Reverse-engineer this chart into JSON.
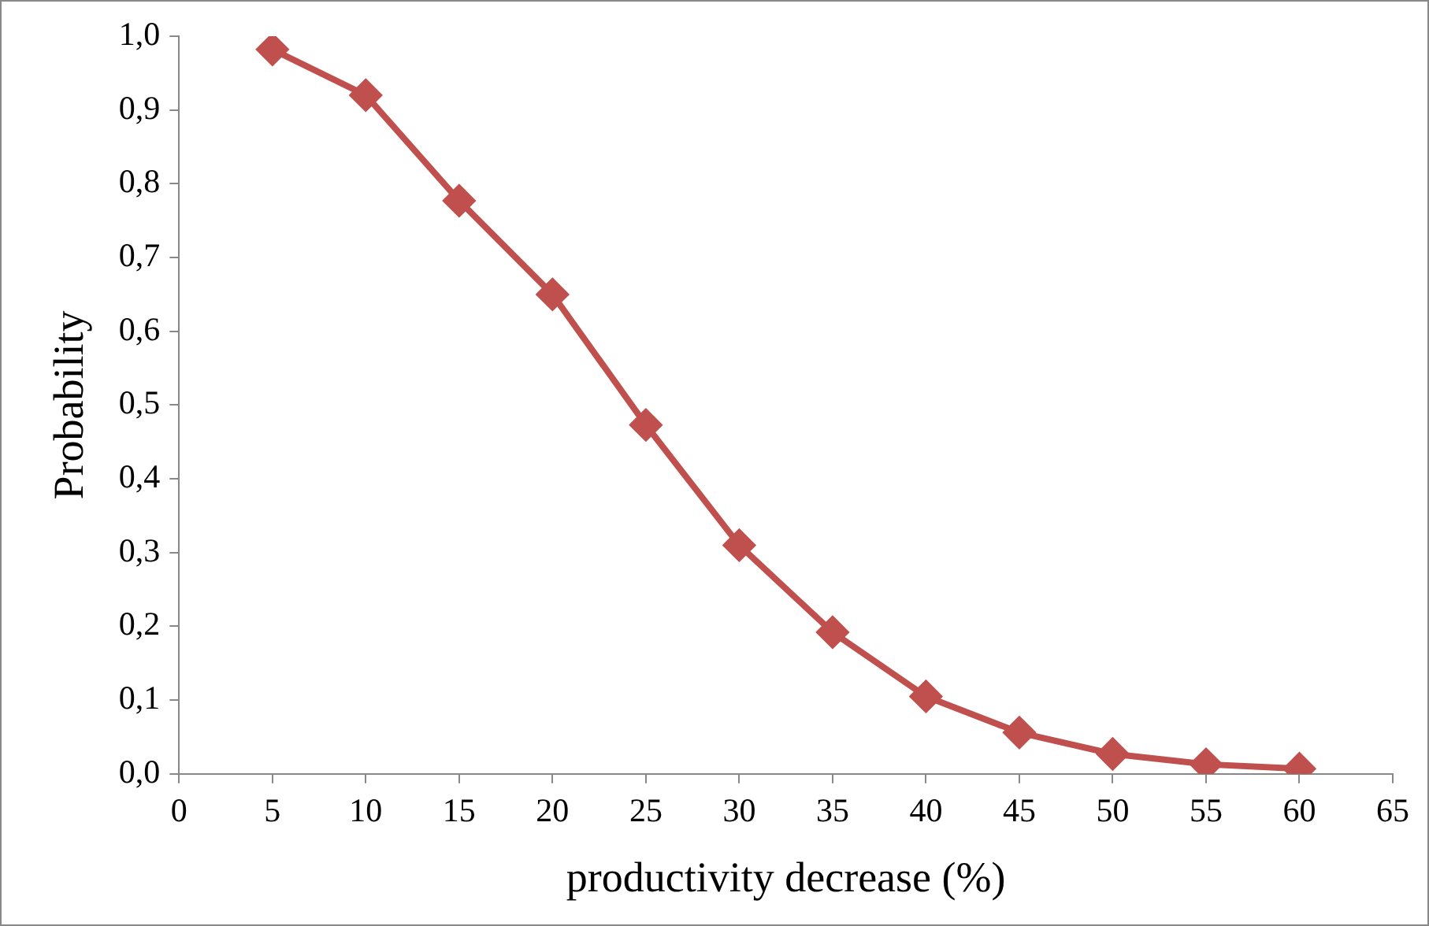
{
  "chart_data": {
    "type": "line",
    "xlabel": "productivity decrease (%)",
    "ylabel": "Probability",
    "x": [
      5,
      10,
      15,
      20,
      25,
      30,
      35,
      40,
      45,
      50,
      55,
      60
    ],
    "series": [
      {
        "color": "#c0504d",
        "values": [
          0.982,
          0.92,
          0.777,
          0.65,
          0.473,
          0.31,
          0.192,
          0.105,
          0.056,
          0.027,
          0.013,
          0.007
        ]
      }
    ],
    "xlim": [
      0,
      65
    ],
    "xticks": [
      0,
      5,
      10,
      15,
      20,
      25,
      30,
      35,
      40,
      45,
      50,
      55,
      60,
      65
    ],
    "ylim": [
      0,
      1
    ],
    "yticks": [
      {
        "value": 0,
        "label": "0,0"
      },
      {
        "value": 0.1,
        "label": "0,1"
      },
      {
        "value": 0.2,
        "label": "0,2"
      },
      {
        "value": 0.3,
        "label": "0,3"
      },
      {
        "value": 0.4,
        "label": "0,4"
      },
      {
        "value": 0.5,
        "label": "0,5"
      },
      {
        "value": 0.6,
        "label": "0,6"
      },
      {
        "value": 0.7,
        "label": "0,7"
      },
      {
        "value": 0.8,
        "label": "0,8"
      },
      {
        "value": 0.9,
        "label": "0,9"
      },
      {
        "value": 1,
        "label": "1,0"
      }
    ],
    "grid": false,
    "legend": false,
    "marker": "diamond",
    "line_style": "solid"
  }
}
